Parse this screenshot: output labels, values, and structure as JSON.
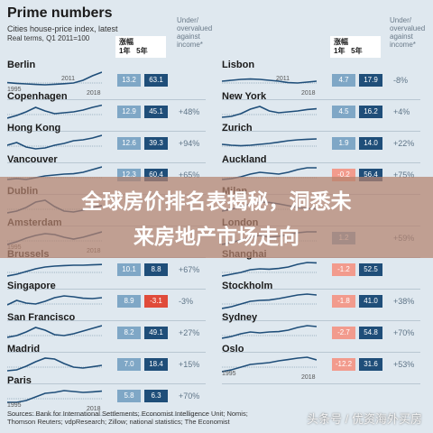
{
  "header": {
    "title": "Prime numbers",
    "subtitle": "Cities house-price index, latest",
    "note": "Real terms, Q1 2011=100",
    "col_label": "涨幅",
    "col_1y": "1年",
    "col_5y": "5年",
    "overvalued": "Under/ overvalued against income*"
  },
  "colors": {
    "positive": "#1f4e79",
    "light": "#7fa7c6",
    "negative": "#e04b3a",
    "light_neg": "#f29b8d"
  },
  "left": [
    {
      "city": "Berlin",
      "y1": "13.2",
      "y5": "63.1",
      "pct": "",
      "years": [
        "1995",
        "2011",
        "2018"
      ],
      "trend": [
        0.42,
        0.38,
        0.35,
        0.32,
        0.3,
        0.33,
        0.36,
        0.4,
        0.55,
        0.8,
        1.0
      ],
      "neg1": false,
      "neg5": false
    },
    {
      "city": "Copenhagen",
      "y1": "12.9",
      "y5": "45.1",
      "pct": "+48%",
      "years": [],
      "trend": [
        0.2,
        0.35,
        0.55,
        0.8,
        0.6,
        0.45,
        0.5,
        0.55,
        0.65,
        0.8,
        0.92
      ],
      "neg1": false,
      "neg5": false
    },
    {
      "city": "Hong Kong",
      "y1": "12.6",
      "y5": "39.3",
      "pct": "+94%",
      "years": [],
      "trend": [
        0.45,
        0.6,
        0.35,
        0.25,
        0.3,
        0.45,
        0.55,
        0.7,
        0.75,
        0.85,
        1.0
      ],
      "neg1": false,
      "neg5": false
    },
    {
      "city": "Vancouver",
      "y1": "12.3",
      "y5": "60.4",
      "pct": "+65%",
      "years": [],
      "trend": [
        0.3,
        0.35,
        0.3,
        0.4,
        0.5,
        0.55,
        0.6,
        0.62,
        0.7,
        0.85,
        1.0
      ],
      "neg1": false,
      "neg5": false
    },
    {
      "city": "Dublin",
      "y1": "",
      "y5": "",
      "pct": "",
      "years": [],
      "trend": [
        0.2,
        0.3,
        0.5,
        0.8,
        0.9,
        0.55,
        0.3,
        0.25,
        0.35,
        0.5,
        0.6
      ],
      "neg1": false,
      "neg5": false
    },
    {
      "city": "Amsterdam",
      "y1": "",
      "y5": "",
      "pct": "",
      "years": [
        "1995",
        "2018"
      ],
      "trend": [
        0.2,
        0.35,
        0.55,
        0.7,
        0.8,
        0.75,
        0.6,
        0.5,
        0.6,
        0.75,
        0.9
      ],
      "neg1": false,
      "neg5": false
    },
    {
      "city": "Brussels",
      "y1": "10.1",
      "y5": "8.8",
      "pct": "+67%",
      "years": [],
      "trend": [
        0.2,
        0.3,
        0.45,
        0.6,
        0.7,
        0.75,
        0.78,
        0.8,
        0.8,
        0.82,
        0.84
      ],
      "neg1": false,
      "neg5": false
    },
    {
      "city": "Singapore",
      "y1": "8.9",
      "y5": "-3.1",
      "pct": "-3%",
      "years": [],
      "trend": [
        0.35,
        0.6,
        0.45,
        0.4,
        0.55,
        0.75,
        0.85,
        0.8,
        0.72,
        0.7,
        0.75
      ],
      "neg1": false,
      "neg5": true
    },
    {
      "city": "San Francisco",
      "y1": "8.2",
      "y5": "49.1",
      "pct": "+27%",
      "years": [],
      "trend": [
        0.3,
        0.4,
        0.6,
        0.85,
        0.7,
        0.45,
        0.4,
        0.5,
        0.65,
        0.8,
        0.95
      ],
      "neg1": false,
      "neg5": false
    },
    {
      "city": "Madrid",
      "y1": "7.0",
      "y5": "18.4",
      "pct": "+15%",
      "years": [],
      "trend": [
        0.2,
        0.25,
        0.45,
        0.7,
        0.9,
        0.85,
        0.6,
        0.4,
        0.35,
        0.42,
        0.5
      ],
      "neg1": false,
      "neg5": false
    },
    {
      "city": "Paris",
      "y1": "5.8",
      "y5": "6.3",
      "pct": "+70%",
      "years": [
        "1995",
        "2018"
      ],
      "trend": [
        0.2,
        0.2,
        0.3,
        0.5,
        0.7,
        0.75,
        0.85,
        0.8,
        0.75,
        0.78,
        0.82
      ],
      "neg1": false,
      "neg5": false
    }
  ],
  "right": [
    {
      "city": "Lisbon",
      "y1": "4.7",
      "y5": "17.9",
      "pct": "-8%",
      "years": [
        "2011",
        "2018"
      ],
      "trend": [
        0.5,
        0.55,
        0.6,
        0.62,
        0.6,
        0.55,
        0.5,
        0.42,
        0.4,
        0.45,
        0.5
      ],
      "neg1": false,
      "neg5": false
    },
    {
      "city": "New York",
      "y1": "4.5",
      "y5": "16.2",
      "pct": "+4%",
      "years": [],
      "trend": [
        0.25,
        0.3,
        0.45,
        0.7,
        0.85,
        0.6,
        0.5,
        0.55,
        0.6,
        0.68,
        0.72
      ],
      "neg1": false,
      "neg5": false
    },
    {
      "city": "Zurich",
      "y1": "1.9",
      "y5": "14.0",
      "pct": "+22%",
      "years": [],
      "trend": [
        0.5,
        0.45,
        0.42,
        0.45,
        0.5,
        0.55,
        0.62,
        0.7,
        0.75,
        0.78,
        0.8
      ],
      "neg1": false,
      "neg5": false
    },
    {
      "city": "Auckland",
      "y1": "-0.2",
      "y5": "56.4",
      "pct": "+75%",
      "years": [],
      "trend": [
        0.3,
        0.35,
        0.45,
        0.6,
        0.7,
        0.65,
        0.6,
        0.7,
        0.85,
        0.95,
        0.95
      ],
      "neg1": true,
      "neg5": false
    },
    {
      "city": "Milan",
      "y1": "",
      "y5": "",
      "pct": "",
      "years": [],
      "trend": [
        0.3,
        0.4,
        0.55,
        0.7,
        0.8,
        0.78,
        0.7,
        0.6,
        0.5,
        0.45,
        0.42
      ],
      "neg1": false,
      "neg5": false
    },
    {
      "city": "London",
      "y1": "1.2",
      "y5": "",
      "pct": "+59%",
      "years": [],
      "trend": [
        0.2,
        0.3,
        0.45,
        0.6,
        0.7,
        0.6,
        0.65,
        0.75,
        0.85,
        0.9,
        0.9
      ],
      "neg1": false,
      "neg5": false
    },
    {
      "city": "Shanghai",
      "y1": "-1.2",
      "y5": "52.5",
      "pct": "",
      "years": [],
      "trend": [
        0.2,
        0.3,
        0.4,
        0.55,
        0.6,
        0.58,
        0.62,
        0.7,
        0.85,
        0.95,
        0.93
      ],
      "neg1": true,
      "neg5": false
    },
    {
      "city": "Stockholm",
      "y1": "-1.8",
      "y5": "41.0",
      "pct": "+38%",
      "years": [],
      "trend": [
        0.15,
        0.25,
        0.4,
        0.55,
        0.6,
        0.62,
        0.7,
        0.8,
        0.9,
        0.95,
        0.9
      ],
      "neg1": true,
      "neg5": false
    },
    {
      "city": "Sydney",
      "y1": "-2.7",
      "y5": "54.8",
      "pct": "+70%",
      "years": [],
      "trend": [
        0.25,
        0.35,
        0.5,
        0.6,
        0.55,
        0.6,
        0.62,
        0.7,
        0.85,
        0.95,
        0.9
      ],
      "neg1": true,
      "neg5": false
    },
    {
      "city": "Oslo",
      "y1": "-12.2",
      "y5": "31.6",
      "pct": "+53%",
      "years": [
        "1995",
        "2018"
      ],
      "trend": [
        0.15,
        0.25,
        0.4,
        0.55,
        0.6,
        0.65,
        0.75,
        0.82,
        0.9,
        0.95,
        0.8
      ],
      "neg1": true,
      "neg5": false
    }
  ],
  "banner": {
    "line1": "全球房价排名表揭秘，洞悉未",
    "line2": "来房地产市场走向"
  },
  "source": "Sources: Bank for International Settlements; Economist Intelligence Unit; Nomis; Thomson Reuters; vdpResearch; Zillow; national statistics; The Economist",
  "watermark": "头条号 / 优资海外买房"
}
